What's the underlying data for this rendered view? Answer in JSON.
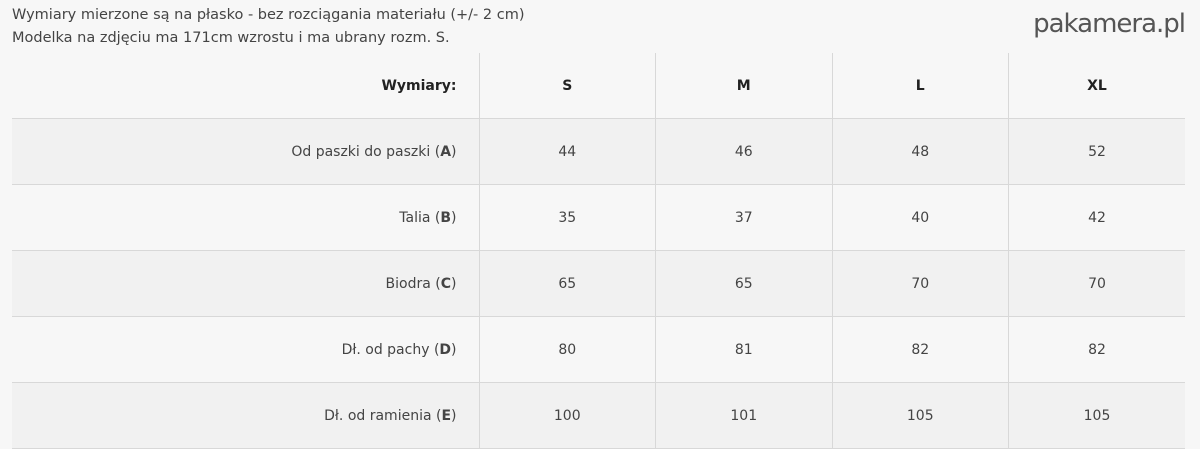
{
  "notes": [
    "Wymiary mierzone są na płasko - bez rozciągania materiału (+/- 2 cm)",
    "Modelka na zdjęciu ma 171cm wzrostu i ma ubrany rozm. S."
  ],
  "table": {
    "header": [
      "Wymiary:",
      "S",
      "M",
      "L",
      "XL"
    ],
    "rows": [
      {
        "label": "Od paszki do paszki (",
        "code": "A",
        "values": [
          "44",
          "46",
          "48",
          "52"
        ]
      },
      {
        "label": "Talia (",
        "code": "B",
        "values": [
          "35",
          "37",
          "40",
          "42"
        ]
      },
      {
        "label": "Biodra (",
        "code": "C",
        "values": [
          "65",
          "65",
          "70",
          "70"
        ]
      },
      {
        "label": "Dł. od pachy (",
        "code": "D",
        "values": [
          "80",
          "81",
          "82",
          "82"
        ]
      },
      {
        "label": "Dł. od ramienia (",
        "code": "E",
        "values": [
          "100",
          "101",
          "105",
          "105"
        ]
      }
    ]
  },
  "watermark": "pakamera.pl"
}
